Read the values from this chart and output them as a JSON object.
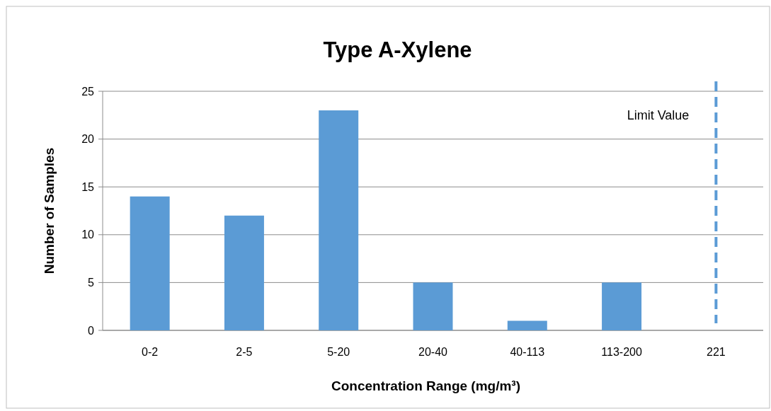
{
  "chart_data": {
    "type": "bar",
    "title": "Type A-Xylene",
    "xlabel": "Concentration Range (mg/m³)",
    "ylabel": "Number of Samples",
    "categories": [
      "0-2",
      "2-5",
      "5-20",
      "20-40",
      "40-113",
      "113-200",
      "221"
    ],
    "values": [
      14,
      12,
      23,
      5,
      1,
      5,
      null
    ],
    "color": "#5b9bd5",
    "ylim": [
      0,
      25
    ],
    "yticks": [
      0,
      5,
      10,
      15,
      20,
      25
    ],
    "grid": "y",
    "ref_lines": [
      {
        "axis": "x",
        "value": "221",
        "label": "Limit Value",
        "color": "#5b9bd5",
        "line_style": "dashed"
      }
    ]
  }
}
